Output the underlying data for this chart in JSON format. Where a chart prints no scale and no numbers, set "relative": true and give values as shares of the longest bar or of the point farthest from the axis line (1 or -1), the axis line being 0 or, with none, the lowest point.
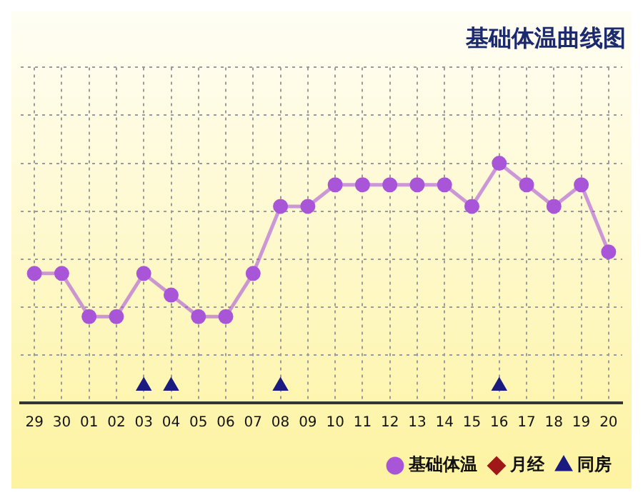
{
  "chart_data": {
    "type": "line",
    "title": "基础体温曲线图",
    "relative": true,
    "categories": [
      "29",
      "30",
      "01",
      "02",
      "03",
      "04",
      "05",
      "06",
      "07",
      "08",
      "09",
      "10",
      "11",
      "12",
      "13",
      "14",
      "15",
      "16",
      "17",
      "18",
      "19",
      "20"
    ],
    "series": [
      {
        "name": "基础体温",
        "color": "#a855d8",
        "marker": "circle",
        "values": [
          0.54,
          0.54,
          0.36,
          0.36,
          0.54,
          0.45,
          0.36,
          0.36,
          0.54,
          0.82,
          0.82,
          0.91,
          0.91,
          0.91,
          0.91,
          0.91,
          0.82,
          1,
          0.91,
          0.82,
          0.91,
          0.63
        ]
      },
      {
        "name": "月经",
        "type": "scatter",
        "color": "#a01818",
        "marker": "diamond",
        "values": [
          null,
          null,
          null,
          null,
          null,
          null,
          null,
          null,
          null,
          null,
          null,
          null,
          null,
          null,
          null,
          null,
          null,
          null,
          null,
          null,
          null,
          null
        ]
      },
      {
        "name": "同房",
        "type": "scatter",
        "color": "#1a1a80",
        "marker": "triangle",
        "values": [
          null,
          null,
          null,
          null,
          0.07,
          0.07,
          null,
          null,
          null,
          0.07,
          null,
          null,
          null,
          null,
          null,
          null,
          null,
          0.07,
          null,
          null,
          null,
          null
        ]
      }
    ],
    "grid": true,
    "legend": "bottom",
    "line_style": "solid"
  }
}
